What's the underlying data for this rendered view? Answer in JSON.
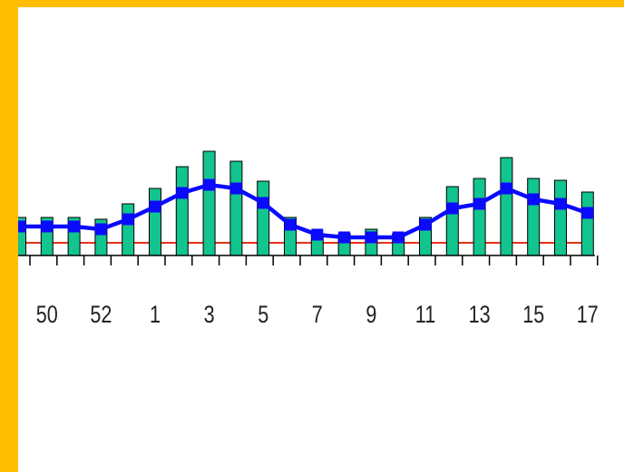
{
  "chart_data": {
    "type": "bar",
    "categories": [
      null,
      "50",
      null,
      "52",
      null,
      "1",
      null,
      "3",
      null,
      "5",
      null,
      "7",
      null,
      "9",
      null,
      "11",
      null,
      "13",
      null,
      "15",
      null,
      "17"
    ],
    "values": [
      42,
      42,
      42,
      40,
      57,
      74,
      98,
      115,
      104,
      82,
      42,
      24,
      24,
      29,
      24,
      42,
      76,
      85,
      108,
      85,
      83,
      70
    ],
    "color": "#12c48e",
    "line_values": [
      32,
      32,
      32,
      29,
      40,
      54,
      69,
      78,
      74,
      58,
      34,
      23,
      20,
      20,
      20,
      34,
      52,
      57,
      74,
      62,
      57,
      47
    ],
    "line_color": "#0a0aff",
    "threshold": 14,
    "threshold_color": "#e8301e",
    "ylim": [
      0,
      120
    ]
  }
}
